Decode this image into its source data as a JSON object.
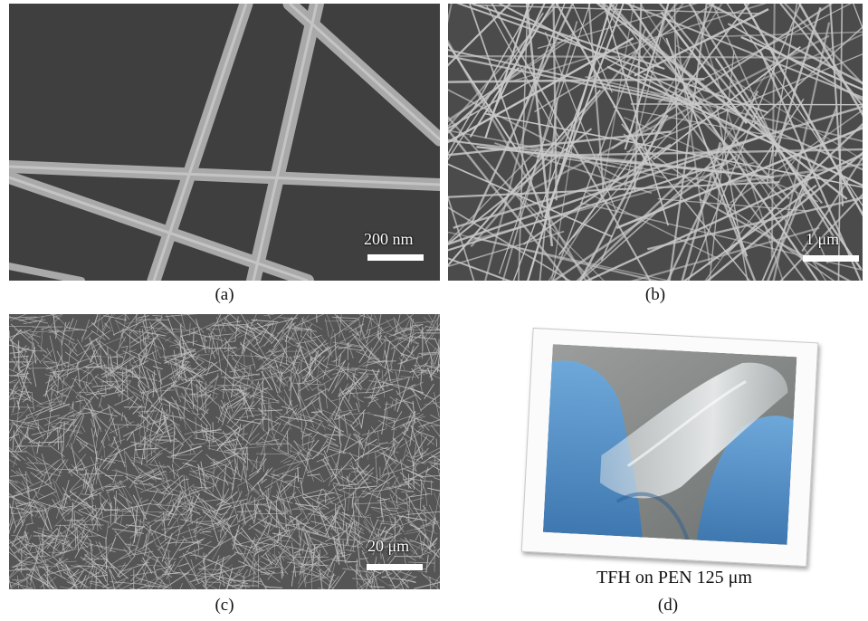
{
  "panels": {
    "a": {
      "label": "(a)",
      "scale": "200 nm"
    },
    "b": {
      "label": "(b)",
      "scale": "1 μm"
    },
    "c": {
      "label": "(c)",
      "scale": "20 μm"
    },
    "d": {
      "label": "(d)",
      "photo_caption": "TFH on PEN 125 μm"
    }
  }
}
